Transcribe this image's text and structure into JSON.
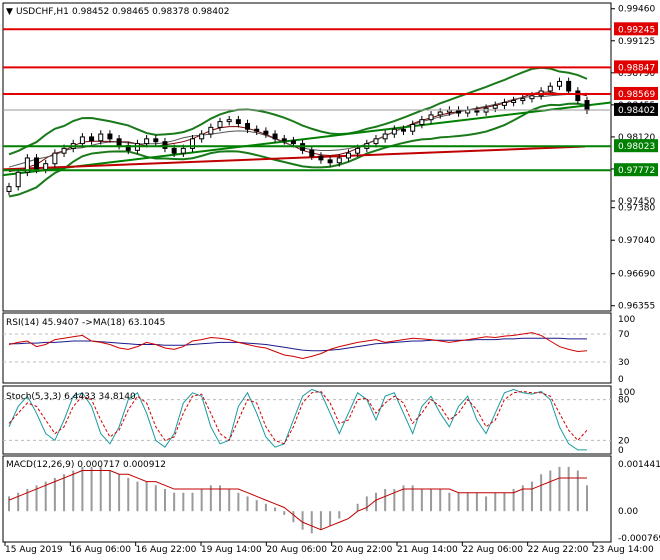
{
  "header": {
    "symbol": "USDCHF,H1",
    "ohlc": "0.98452 0.98465 0.98378 0.98402"
  },
  "chart_data": [
    {
      "type": "candlestick",
      "name": "price",
      "y_ticks": [
        0.9946,
        0.99125,
        0.9879,
        0.98455,
        0.9812,
        0.97785,
        0.9745,
        0.9738,
        0.9704,
        0.9669,
        0.96355
      ],
      "y_tick_labels": [
        "0.99460",
        "0.99125",
        "0.98790",
        "0.98455",
        "0.98120",
        "0.97785",
        "0.97450",
        "0.97380",
        "0.97040",
        "0.96690",
        "0.96355"
      ],
      "ylim": [
        0.963,
        0.9952
      ],
      "x_labels": [
        "15 Aug 2019",
        "16 Aug 06:00",
        "16 Aug 22:00",
        "19 Aug 14:00",
        "20 Aug 06:00",
        "20 Aug 22:00",
        "21 Aug 14:00",
        "22 Aug 06:00",
        "22 Aug 22:00",
        "23 Aug 14:00"
      ],
      "close_series": [
        0.976,
        0.9775,
        0.979,
        0.9778,
        0.9784,
        0.9795,
        0.98,
        0.9805,
        0.9812,
        0.9808,
        0.9815,
        0.981,
        0.9803,
        0.9798,
        0.9805,
        0.981,
        0.9807,
        0.98,
        0.9795,
        0.98,
        0.981,
        0.9815,
        0.9822,
        0.9828,
        0.983,
        0.9826,
        0.982,
        0.9818,
        0.9815,
        0.981,
        0.9808,
        0.9805,
        0.9798,
        0.9792,
        0.9788,
        0.9785,
        0.979,
        0.9795,
        0.98,
        0.9805,
        0.981,
        0.9815,
        0.982,
        0.9818,
        0.9825,
        0.983,
        0.9835,
        0.9838,
        0.984,
        0.9837,
        0.984,
        0.9838,
        0.9842,
        0.9845,
        0.9848,
        0.985,
        0.9852,
        0.9855,
        0.986,
        0.9865,
        0.987,
        0.986,
        0.985,
        0.984
      ],
      "levels": [
        {
          "value": 0.99245,
          "label": "0.99245",
          "color": "#e00000"
        },
        {
          "value": 0.98847,
          "label": "0.98847",
          "color": "#e00000"
        },
        {
          "value": 0.98569,
          "label": "0.98569",
          "color": "#e00000"
        },
        {
          "value": 0.98023,
          "label": "0.98023",
          "color": "#008000"
        },
        {
          "value": 0.97772,
          "label": "0.97772",
          "color": "#008000"
        }
      ],
      "current_price": {
        "value": 0.98402,
        "label": "0.98402"
      }
    },
    {
      "type": "line",
      "name": "rsi",
      "title": "RSI(14) 45.9407 ->MA(18) 63.1045",
      "y_ticks": [
        100,
        70,
        30,
        0
      ],
      "y_tick_labels": [
        "100",
        "70",
        "30",
        "0"
      ],
      "ylim": [
        0,
        100
      ],
      "rsi": [
        55,
        58,
        60,
        52,
        55,
        62,
        64,
        66,
        68,
        60,
        58,
        55,
        50,
        48,
        52,
        58,
        55,
        50,
        48,
        52,
        60,
        62,
        65,
        64,
        62,
        58,
        55,
        52,
        50,
        45,
        40,
        38,
        35,
        38,
        42,
        48,
        52,
        55,
        58,
        60,
        62,
        58,
        60,
        62,
        64,
        63,
        62,
        60,
        58,
        60,
        62,
        64,
        66,
        65,
        67,
        68,
        70,
        72,
        68,
        60,
        52,
        48,
        45,
        46
      ],
      "ma": [
        56,
        56,
        57,
        57,
        58,
        58,
        59,
        60,
        60,
        60,
        59,
        58,
        57,
        56,
        55,
        55,
        55,
        54,
        54,
        54,
        55,
        56,
        57,
        58,
        58,
        58,
        57,
        56,
        55,
        53,
        51,
        49,
        47,
        46,
        46,
        47,
        48,
        50,
        52,
        54,
        56,
        57,
        58,
        59,
        60,
        60,
        61,
        61,
        61,
        61,
        61,
        62,
        62,
        62,
        63,
        63,
        64,
        64,
        64,
        64,
        64,
        63,
        63,
        63
      ]
    },
    {
      "type": "line",
      "name": "stochastic",
      "title": "Stoch(5,3,3) 6.4433 34.8140",
      "y_ticks": [
        100,
        80,
        20,
        0
      ],
      "y_tick_labels": [
        "100",
        "80",
        "20",
        "0"
      ],
      "ylim": [
        0,
        100
      ],
      "main": [
        40,
        70,
        85,
        60,
        30,
        20,
        50,
        85,
        90,
        70,
        30,
        15,
        40,
        80,
        90,
        60,
        20,
        10,
        30,
        75,
        90,
        85,
        40,
        15,
        20,
        70,
        90,
        60,
        25,
        10,
        15,
        50,
        85,
        95,
        90,
        60,
        30,
        60,
        90,
        80,
        50,
        85,
        90,
        60,
        30,
        70,
        85,
        60,
        40,
        70,
        85,
        50,
        30,
        60,
        90,
        95,
        90,
        88,
        92,
        80,
        40,
        15,
        6,
        6
      ],
      "signal": [
        45,
        60,
        75,
        70,
        50,
        30,
        40,
        70,
        85,
        80,
        50,
        25,
        35,
        65,
        85,
        75,
        40,
        20,
        25,
        60,
        85,
        88,
        60,
        30,
        20,
        50,
        80,
        75,
        40,
        20,
        15,
        40,
        75,
        90,
        92,
        75,
        45,
        50,
        80,
        82,
        60,
        75,
        85,
        75,
        45,
        60,
        80,
        70,
        50,
        60,
        80,
        65,
        40,
        50,
        80,
        90,
        92,
        90,
        90,
        85,
        60,
        35,
        20,
        35
      ]
    },
    {
      "type": "bar",
      "name": "macd",
      "title": "MACD(12,26,9) 0.000717 0.000912",
      "y_ticks": [
        0.00144,
        0.0,
        -0.00078
      ],
      "y_tick_labels": [
        "0.001441",
        "0.00",
        "-0.000769"
      ],
      "ylim": [
        -0.00078,
        0.00144
      ],
      "histogram": [
        0.0004,
        0.0005,
        0.0006,
        0.0007,
        0.0008,
        0.0009,
        0.001,
        0.0011,
        0.0012,
        0.0012,
        0.0012,
        0.0011,
        0.001,
        0.0009,
        0.0008,
        0.0008,
        0.0007,
        0.0006,
        0.0005,
        0.0005,
        0.0005,
        0.0006,
        0.0007,
        0.0007,
        0.0006,
        0.0005,
        0.0004,
        0.0003,
        0.0002,
        0.0001,
        -0.0001,
        -0.0003,
        -0.0005,
        -0.0006,
        -0.0005,
        -0.0004,
        -0.0002,
        0.0,
        0.0002,
        0.0004,
        0.0005,
        0.0006,
        0.0006,
        0.0007,
        0.0007,
        0.0006,
        0.0006,
        0.0006,
        0.0005,
        0.0005,
        0.0005,
        0.0005,
        0.0004,
        0.0005,
        0.0005,
        0.0006,
        0.0007,
        0.0008,
        0.001,
        0.0011,
        0.0012,
        0.0012,
        0.0011,
        0.0007
      ],
      "signal": [
        0.0003,
        0.0004,
        0.0005,
        0.0006,
        0.0007,
        0.0008,
        0.0009,
        0.001,
        0.0011,
        0.0011,
        0.0011,
        0.0011,
        0.001,
        0.001,
        0.0009,
        0.0008,
        0.0008,
        0.0007,
        0.0006,
        0.0006,
        0.0006,
        0.0006,
        0.0006,
        0.0006,
        0.0006,
        0.0006,
        0.0005,
        0.0004,
        0.0003,
        0.0002,
        0.0001,
        -0.0001,
        -0.0003,
        -0.0004,
        -0.0005,
        -0.0004,
        -0.0003,
        -0.0002,
        0.0,
        0.0001,
        0.0003,
        0.0004,
        0.0005,
        0.0006,
        0.0006,
        0.0006,
        0.0006,
        0.0006,
        0.0006,
        0.0005,
        0.0005,
        0.0005,
        0.0005,
        0.0005,
        0.0005,
        0.0005,
        0.0006,
        0.0006,
        0.0007,
        0.0008,
        0.0009,
        0.0009,
        0.0009,
        0.0009
      ]
    }
  ]
}
